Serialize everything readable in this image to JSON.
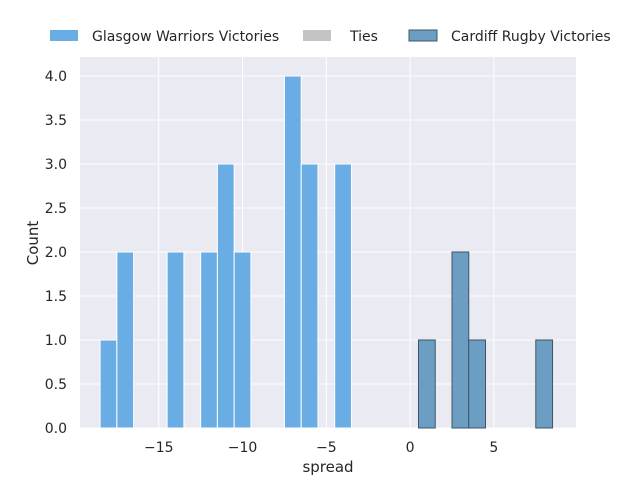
{
  "chart_data": {
    "type": "bar",
    "title": "",
    "xlabel": "spread",
    "ylabel": "Count",
    "xlim": [
      -20,
      10
    ],
    "ylim": [
      0,
      4.2
    ],
    "bin_width": 1,
    "xticks": [
      -15,
      -10,
      -5,
      0,
      5
    ],
    "xtick_labels": [
      "−15",
      "−10",
      "−5",
      "0",
      "5"
    ],
    "yticks": [
      0,
      0.5,
      1,
      1.5,
      2,
      2.5,
      3,
      3.5,
      4
    ],
    "ytick_labels": [
      "0.0",
      "0.5",
      "1.0",
      "1.5",
      "2.0",
      "2.5",
      "3.0",
      "3.5",
      "4.0"
    ],
    "grid": true,
    "legend_position": "top-center",
    "series": [
      {
        "name": "Glasgow Warriors Victories",
        "color": "#6aade4",
        "edge": "#ffffff",
        "bins": [
          {
            "x0": -18.5,
            "count": 1
          },
          {
            "x0": -17.5,
            "count": 2
          },
          {
            "x0": -14.5,
            "count": 2
          },
          {
            "x0": -12.5,
            "count": 2
          },
          {
            "x0": -11.5,
            "count": 3
          },
          {
            "x0": -10.5,
            "count": 2
          },
          {
            "x0": -7.5,
            "count": 4
          },
          {
            "x0": -6.5,
            "count": 3
          },
          {
            "x0": -4.5,
            "count": 3
          }
        ]
      },
      {
        "name": "Ties",
        "color": "#c4c4c4",
        "edge": "#c4c4c4",
        "bins": []
      },
      {
        "name": "Cardiff Rugby Victories",
        "color": "#6b9ec2",
        "edge": "#3f5566",
        "bins": [
          {
            "x0": 0.5,
            "count": 1
          },
          {
            "x0": 2.5,
            "count": 2
          },
          {
            "x0": 3.5,
            "count": 1
          },
          {
            "x0": 7.5,
            "count": 1
          }
        ]
      }
    ]
  }
}
